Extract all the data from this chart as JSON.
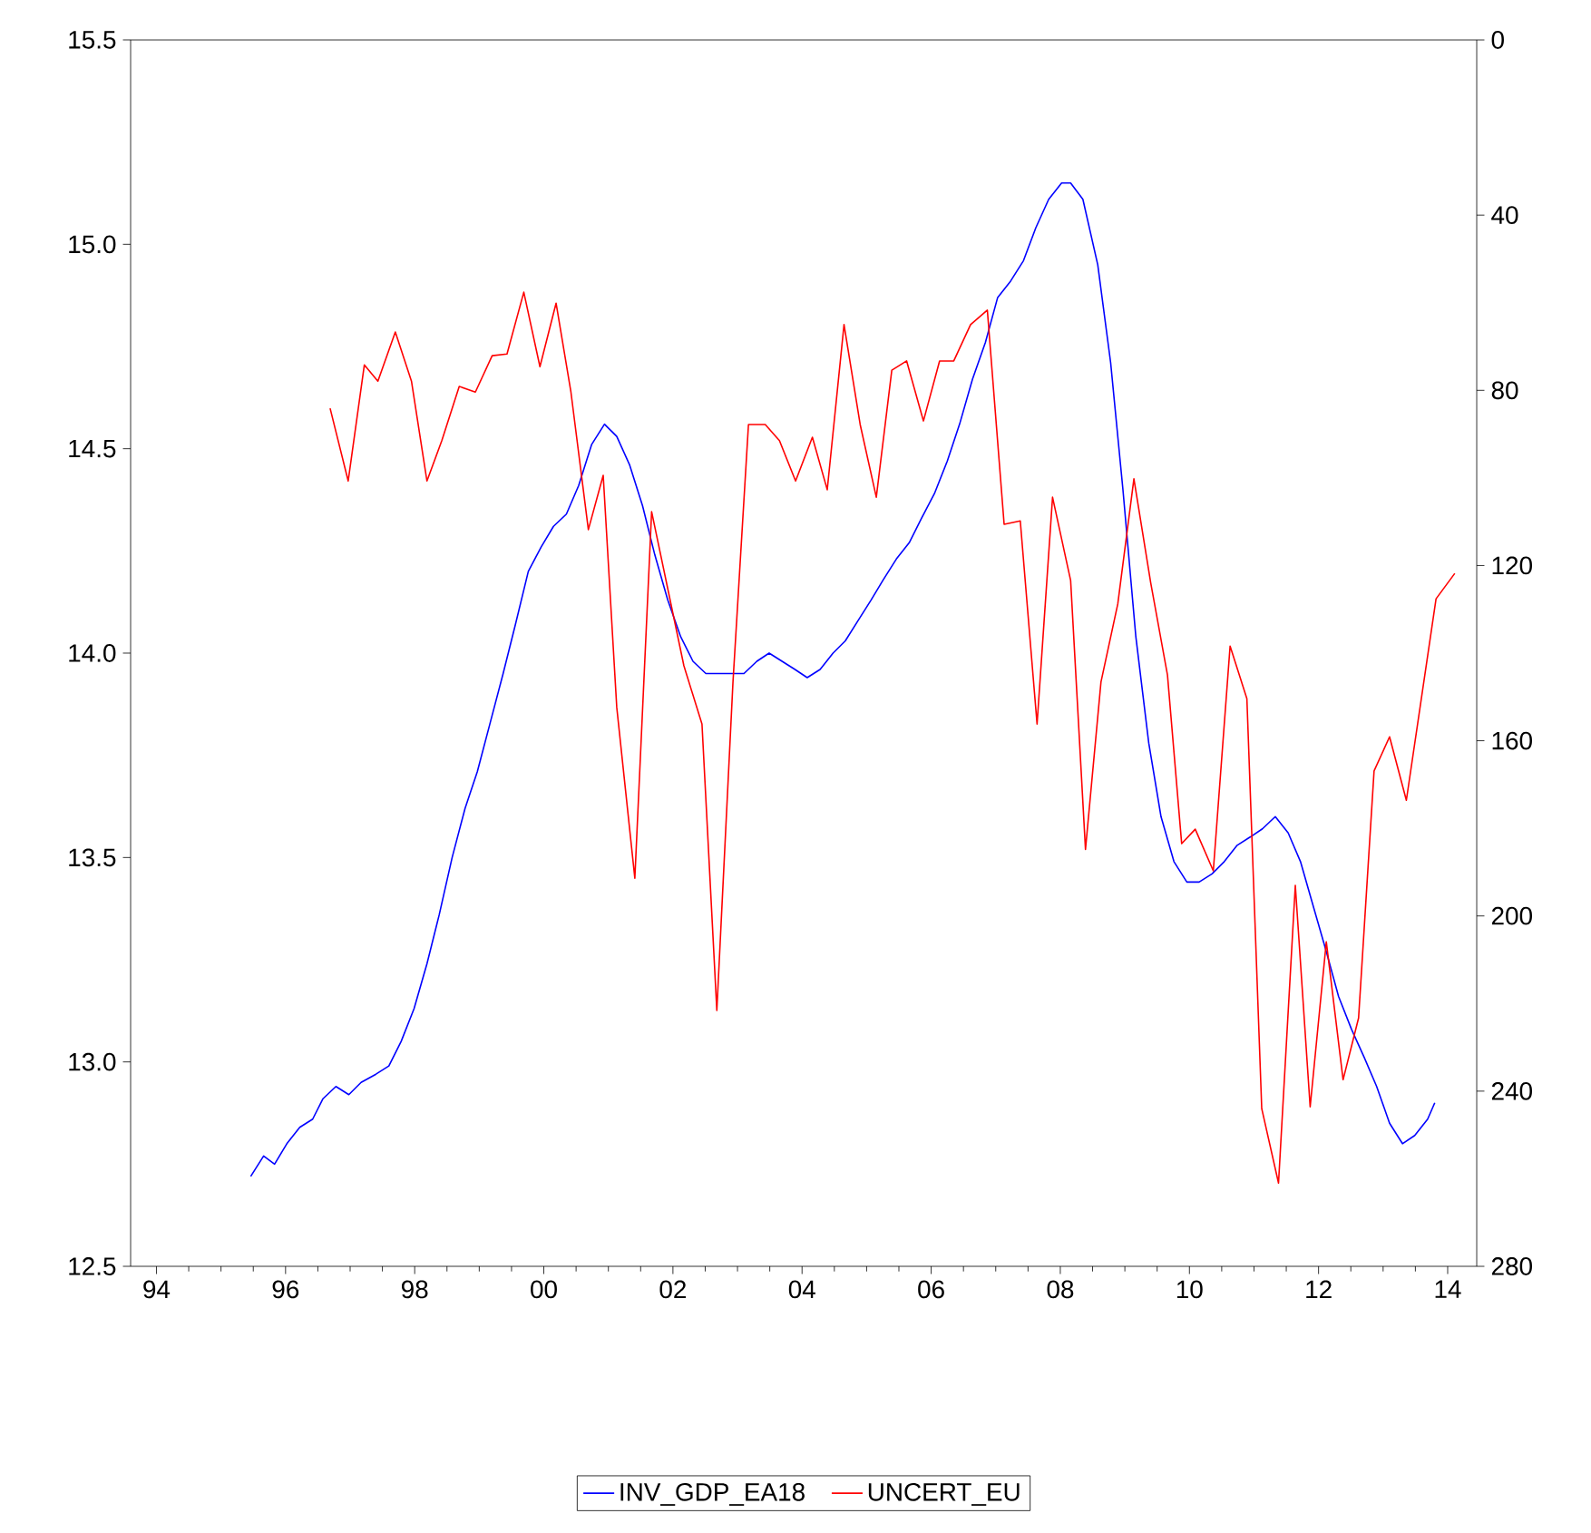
{
  "chart_data": {
    "type": "line",
    "marker": "none",
    "legend": "bottom",
    "xlim": [
      1993.6,
      2014.45
    ],
    "xticks": [
      {
        "value": 1994,
        "label": "94"
      },
      {
        "value": 1996,
        "label": "96"
      },
      {
        "value": 1998,
        "label": "98"
      },
      {
        "value": 2000,
        "label": "00"
      },
      {
        "value": 2002,
        "label": "02"
      },
      {
        "value": 2004,
        "label": "04"
      },
      {
        "value": 2006,
        "label": "06"
      },
      {
        "value": 2008,
        "label": "08"
      },
      {
        "value": 2010,
        "label": "10"
      },
      {
        "value": 2012,
        "label": "12"
      },
      {
        "value": 2014,
        "label": "14"
      }
    ],
    "ylim": [
      12.5,
      15.5
    ],
    "yticks": [
      12.5,
      {
        "value": 13,
        "label": "13.0"
      },
      13.5,
      {
        "value": 14,
        "label": "14.0"
      },
      14.5,
      {
        "value": 15,
        "label": "15.0"
      },
      15.5
    ],
    "y2lim": [
      280,
      0
    ],
    "y2ticks": [
      0,
      40,
      80,
      120,
      160,
      200,
      240,
      280
    ],
    "series": [
      {
        "name": "INV_GDP_EA18",
        "color": "#0000ff",
        "x": [
          1995.46,
          1995.66,
          1995.83,
          1996.02,
          1996.22,
          1996.42,
          1996.58,
          1996.78,
          1996.98,
          1997.17,
          1997.4,
          1997.6,
          1997.79,
          1997.99,
          1998.19,
          1998.38,
          1998.58,
          1998.78,
          1998.97,
          1999.17,
          1999.37,
          1999.56,
          1999.76,
          1999.96,
          2000.15,
          2000.35,
          2000.54,
          2000.74,
          2000.94,
          2001.13,
          2001.33,
          2001.53,
          2001.72,
          2001.92,
          2002.12,
          2002.31,
          2002.51,
          2002.71,
          2002.9,
          2003.1,
          2003.3,
          2003.49,
          2003.69,
          2003.89,
          2004.08,
          2004.28,
          2004.48,
          2004.67,
          2004.87,
          2005.07,
          2005.26,
          2005.46,
          2005.66,
          2005.85,
          2006.05,
          2006.25,
          2006.44,
          2006.64,
          2006.84,
          2007.03,
          2007.23,
          2007.43,
          2007.62,
          2007.82,
          2008.02,
          2008.16,
          2008.35,
          2008.58,
          2008.78,
          2008.97,
          2009.17,
          2009.37,
          2009.56,
          2009.76,
          2009.96,
          2010.15,
          2010.35,
          2010.54,
          2010.74,
          2010.94,
          2011.13,
          2011.33,
          2011.53,
          2011.72,
          2011.92,
          2012.12,
          2012.31,
          2012.51,
          2012.71,
          2012.9,
          2013.1,
          2013.3,
          2013.49,
          2013.69,
          2013.8
        ],
        "values": [
          12.72,
          12.77,
          12.75,
          12.8,
          12.84,
          12.86,
          12.91,
          12.94,
          12.92,
          12.95,
          12.97,
          12.99,
          13.05,
          13.13,
          13.24,
          13.36,
          13.5,
          13.62,
          13.71,
          13.83,
          13.95,
          14.07,
          14.2,
          14.26,
          14.31,
          14.34,
          14.41,
          14.51,
          14.56,
          14.53,
          14.46,
          14.36,
          14.24,
          14.13,
          14.04,
          13.98,
          13.95,
          13.95,
          13.95,
          13.95,
          13.98,
          14.0,
          13.98,
          13.96,
          13.94,
          13.96,
          14.0,
          14.03,
          14.08,
          14.13,
          14.18,
          14.23,
          14.27,
          14.33,
          14.39,
          14.47,
          14.56,
          14.67,
          14.76,
          14.87,
          14.91,
          14.96,
          15.04,
          15.11,
          15.15,
          15.15,
          15.11,
          14.95,
          14.71,
          14.4,
          14.04,
          13.78,
          13.6,
          13.49,
          13.44,
          13.44,
          13.46,
          13.49,
          13.53,
          13.55,
          13.57,
          13.6,
          13.56,
          13.49,
          13.38,
          13.27,
          13.16,
          13.08,
          13.01,
          12.94,
          12.85,
          12.8,
          12.82,
          12.86,
          12.9
        ]
      },
      {
        "name": "UNCERT_EU",
        "color": "#ff0000",
        "axis": "y2",
        "x": [
          1996.69,
          1996.97,
          1997.22,
          1997.43,
          1997.7,
          1997.95,
          1998.19,
          1998.42,
          1998.69,
          1998.94,
          1999.2,
          1999.43,
          1999.69,
          1999.94,
          2000.19,
          2000.42,
          2000.69,
          2000.92,
          2001.13,
          2001.41,
          2001.67,
          2002.17,
          2002.45,
          2002.68,
          2002.93,
          2003.17,
          2003.43,
          2003.65,
          2003.9,
          2004.16,
          2004.39,
          2004.65,
          2004.9,
          2005.15,
          2005.39,
          2005.62,
          2005.88,
          2006.13,
          2006.35,
          2006.61,
          2006.87,
          2007.13,
          2007.38,
          2007.64,
          2007.88,
          2008.16,
          2008.39,
          2008.63,
          2008.89,
          2009.14,
          2009.4,
          2009.66,
          2009.88,
          2010.09,
          2010.37,
          2010.63,
          2010.89,
          2011.12,
          2011.38,
          2011.64,
          2011.87,
          2012.12,
          2012.38,
          2012.62,
          2012.86,
          2013.1,
          2013.36,
          2013.82,
          2014.11
        ],
        "values": [
          84.1,
          100.7,
          74.2,
          77.9,
          66.7,
          77.9,
          100.7,
          91.5,
          79.1,
          80.4,
          72.1,
          71.7,
          57.6,
          74.6,
          60.1,
          80.4,
          111.8,
          99.4,
          152.4,
          191.4,
          107.7,
          142.9,
          156.2,
          221.6,
          146.6,
          87.8,
          87.8,
          91.5,
          100.7,
          90.7,
          102.7,
          65.0,
          87.8,
          104.4,
          75.4,
          73.3,
          87.0,
          73.3,
          73.3,
          65.0,
          61.7,
          110.6,
          109.8,
          156.2,
          104.4,
          123.4,
          184.8,
          146.6,
          128.8,
          100.2,
          123.9,
          145.0,
          183.5,
          180.2,
          189.7,
          138.4,
          150.4,
          244.0,
          261.0,
          193.0,
          243.6,
          205.9,
          237.4,
          223.3,
          166.9,
          159.1,
          173.6,
          127.6,
          121.8
        ]
      }
    ]
  }
}
